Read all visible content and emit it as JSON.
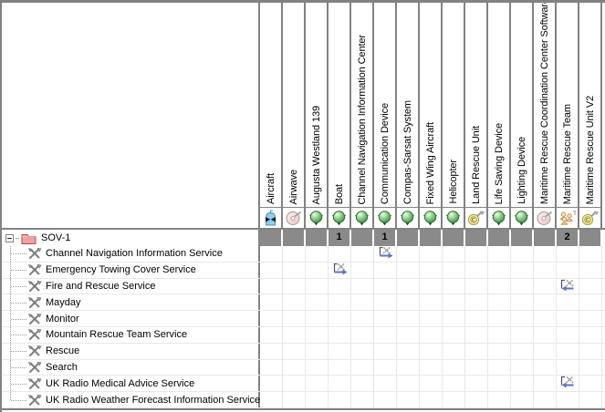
{
  "matrix": {
    "columns": [
      {
        "label": "Aircraft",
        "icon": "aircraft"
      },
      {
        "label": "Airwave",
        "icon": "cd"
      },
      {
        "label": "Augusta Westland 139",
        "icon": "orb"
      },
      {
        "label": "Boat",
        "icon": "orb"
      },
      {
        "label": "Channel Navigation Information Center",
        "icon": "orb"
      },
      {
        "label": "Communication Device",
        "icon": "orb"
      },
      {
        "label": "Compas-Sarsat System",
        "icon": "orb"
      },
      {
        "label": "Fixed Wing Aircraft",
        "icon": "orb"
      },
      {
        "label": "Helicopter",
        "icon": "orb"
      },
      {
        "label": "Land Rescue Unit",
        "icon": "cc"
      },
      {
        "label": "Life Saving Device",
        "icon": "orb"
      },
      {
        "label": "Lighting Device",
        "icon": "orb"
      },
      {
        "label": "Maritime Rescue Coordination Center Software",
        "icon": "cd"
      },
      {
        "label": "Maritime Rescue Team",
        "icon": "team"
      },
      {
        "label": "Maritime Rescue Unit V2",
        "icon": "cc"
      }
    ],
    "root_row": {
      "label": "SOV-1",
      "icon": "folder",
      "expander": "minus",
      "counts": [
        "",
        "",
        "",
        "1",
        "",
        "1",
        "",
        "",
        "",
        "",
        "",
        "",
        "",
        "2",
        ""
      ]
    },
    "rows": [
      {
        "label": "Channel Navigation Information Service",
        "icon": "tools"
      },
      {
        "label": "Emergency Towing Cover Service",
        "icon": "tools"
      },
      {
        "label": "Fire and Rescue Service",
        "icon": "tools"
      },
      {
        "label": "Mayday",
        "icon": "tools"
      },
      {
        "label": "Monitor",
        "icon": "tools"
      },
      {
        "label": "Mountain Rescue Team Service",
        "icon": "tools"
      },
      {
        "label": "Rescue",
        "icon": "tools"
      },
      {
        "label": "Search",
        "icon": "tools"
      },
      {
        "label": "UK Radio Medical Advice Service",
        "icon": "tools"
      },
      {
        "label": "UK Radio Weather Forecast Information Service",
        "icon": "tools"
      }
    ],
    "cells": [
      {
        "row": 0,
        "col": 5,
        "icon": "link-right"
      },
      {
        "row": 1,
        "col": 3,
        "icon": "link-right"
      },
      {
        "row": 2,
        "col": 13,
        "icon": "link-left"
      },
      {
        "row": 8,
        "col": 13,
        "icon": "link-left"
      }
    ],
    "colors": {
      "grid_border": "#828282",
      "count_row_bg": "#8a8a8a",
      "body_gridline": "#e8e8eb",
      "arrow_blue": "#5b76c0",
      "orb_green": "#3f8f3f",
      "folder_pink": "#f2a0a0"
    }
  }
}
